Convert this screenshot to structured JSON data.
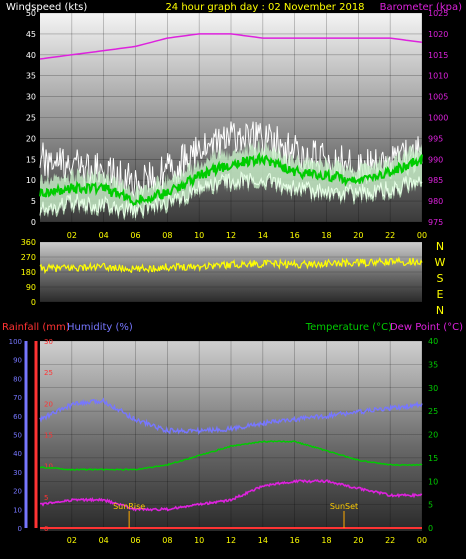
{
  "header": {
    "windspeed_label": "Windspeed (kts)",
    "title": "24 hour graph day : 02 November 2018",
    "barometer_label": "Barometer (kpa)"
  },
  "colors": {
    "background": "#000000",
    "wind": "#ffffff",
    "wind_avg": "#00cc00",
    "wind_gust_fill": "#c8f0c8",
    "barometer": "#dd22dd",
    "direction": "#ffff00",
    "humidity": "#7777ff",
    "rain": "#ff3333",
    "temperature": "#00cc00",
    "dewpoint": "#dd22dd",
    "sun_marker": "#ffaa00",
    "axis_text_white": "#ffffff"
  },
  "x_ticks": [
    "02",
    "04",
    "06",
    "08",
    "10",
    "12",
    "14",
    "16",
    "18",
    "20",
    "22",
    "00"
  ],
  "panel_wind": {
    "left_ticks": [
      "0",
      "5",
      "10",
      "15",
      "20",
      "25",
      "30",
      "35",
      "40",
      "45",
      "50"
    ],
    "right_ticks": [
      "975",
      "980",
      "985",
      "990",
      "995",
      "1000",
      "1005",
      "1010",
      "1015",
      "1020",
      "1025"
    ]
  },
  "panel_dir": {
    "left_ticks": [
      "0",
      "90",
      "180",
      "270",
      "360"
    ],
    "compass": [
      "N",
      "W",
      "S",
      "E",
      "N"
    ]
  },
  "panel_bottom": {
    "labels": {
      "rainfall": "Rainfall (mm)",
      "humidity": "Humidity (%)",
      "temperature": "Temperature (°C)",
      "dewpoint": "Dew Point (°C)"
    },
    "humidity_ticks": [
      "0",
      "10",
      "20",
      "30",
      "40",
      "50",
      "60",
      "70",
      "80",
      "90",
      "100"
    ],
    "rain_ticks": [
      "0",
      "5",
      "10",
      "15",
      "20",
      "25",
      "30"
    ],
    "temp_ticks": [
      "0",
      "5",
      "10",
      "15",
      "20",
      "25",
      "30",
      "35",
      "40"
    ],
    "sunrise_label": "SunRise",
    "sunset_label": "SunSet"
  },
  "chart_data": [
    {
      "type": "line",
      "title": "24 hour graph day : 02 November 2018",
      "xlabel": "",
      "ylabel": "Windspeed (kts)",
      "y2label": "Barometer (kpa)",
      "x": [
        0,
        2,
        4,
        6,
        8,
        10,
        12,
        14,
        16,
        18,
        20,
        22,
        24
      ],
      "ylim": [
        0,
        50
      ],
      "y2lim": [
        975,
        1025
      ],
      "series": [
        {
          "name": "Windspeed (kts)",
          "axis": "left",
          "values": [
            15,
            13,
            12,
            9,
            12,
            17,
            20,
            20,
            17,
            15,
            13,
            14,
            17
          ]
        },
        {
          "name": "",
          "axis": "left",
          "values": [
            7,
            8,
            8,
            5,
            7,
            11,
            14,
            15,
            12,
            11,
            10,
            12,
            15
          ]
        },
        {
          "name": "",
          "axis": "left",
          "values": [
            3,
            5,
            4,
            3,
            5,
            8,
            10,
            10,
            8,
            7,
            7,
            8,
            10
          ]
        },
        {
          "name": "Barometer (kpa)",
          "axis": "right",
          "values": [
            1014,
            1015,
            1016,
            1017,
            1019,
            1020,
            1020,
            1019,
            1019,
            1019,
            1019,
            1019,
            1018
          ]
        }
      ]
    },
    {
      "type": "line",
      "title": "",
      "ylabel": "",
      "x": [
        0,
        2,
        4,
        6,
        8,
        10,
        12,
        14,
        16,
        18,
        20,
        22,
        24
      ],
      "ylim": [
        0,
        360
      ],
      "series": [
        {
          "name": "",
          "values": [
            200,
            205,
            210,
            195,
            210,
            215,
            225,
            230,
            225,
            230,
            235,
            240,
            245
          ]
        }
      ]
    },
    {
      "type": "line",
      "title": "",
      "x": [
        0,
        2,
        4,
        6,
        8,
        10,
        12,
        14,
        16,
        18,
        20,
        22,
        24
      ],
      "ylim_humidity": [
        0,
        100
      ],
      "ylim_rain": [
        0,
        30
      ],
      "ylim_temp": [
        0,
        40
      ],
      "series": [
        {
          "name": "Humidity (%)",
          "axis": "humidity",
          "values": [
            58,
            66,
            68,
            58,
            52,
            52,
            53,
            56,
            58,
            60,
            62,
            64,
            66
          ]
        },
        {
          "name": "Rainfall (mm)",
          "axis": "rain",
          "values": [
            0,
            0,
            0,
            0,
            0,
            0,
            0,
            0,
            0,
            0,
            0,
            0,
            0
          ]
        },
        {
          "name": "Temperature (°C)",
          "axis": "temp",
          "values": [
            13,
            12.5,
            12.5,
            12.5,
            13.5,
            15.5,
            17.5,
            18.5,
            18.5,
            16.5,
            14.5,
            13.5,
            13.5
          ]
        },
        {
          "name": "Dew Point (°C)",
          "axis": "temp",
          "values": [
            5,
            6,
            6,
            4,
            4,
            5,
            6,
            9,
            10,
            10,
            8.5,
            7,
            7
          ]
        }
      ],
      "sunrise_hour": 5.6,
      "sunset_hour": 19.1
    }
  ]
}
